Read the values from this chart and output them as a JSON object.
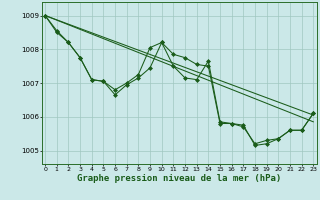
{
  "background_color": "#cbe8e8",
  "grid_color": "#a0c8c0",
  "line_color": "#1a5c1a",
  "xlabel": "Graphe pression niveau de la mer (hPa)",
  "xlabel_fontsize": 6.5,
  "ylabel_ticks": [
    1005,
    1006,
    1007,
    1008,
    1009
  ],
  "xtick_labels": [
    "0",
    "1",
    "2",
    "3",
    "4",
    "5",
    "6",
    "7",
    "8",
    "9",
    "10",
    "11",
    "12",
    "13",
    "14",
    "15",
    "16",
    "17",
    "18",
    "19",
    "20",
    "21",
    "22",
    "23"
  ],
  "xlim": [
    -0.3,
    23.3
  ],
  "ylim": [
    1004.6,
    1009.4
  ],
  "line1_x": [
    0,
    1,
    2,
    3,
    4,
    5,
    6,
    7,
    8,
    9,
    10,
    11,
    12,
    13,
    14,
    15,
    16,
    17,
    18,
    19,
    20,
    21,
    22,
    23
  ],
  "line1_y": [
    1009.0,
    1008.55,
    1008.2,
    1007.75,
    1007.1,
    1007.05,
    1006.65,
    1006.95,
    1007.15,
    1007.45,
    1008.2,
    1007.5,
    1007.15,
    1007.1,
    1007.65,
    1005.85,
    1005.8,
    1005.75,
    1005.15,
    1005.2,
    1005.35,
    1005.6,
    1005.6,
    1006.1
  ],
  "line2_x": [
    0,
    1,
    2,
    3,
    4,
    5,
    6,
    7,
    8,
    9,
    10,
    11,
    12,
    13,
    14,
    15,
    16,
    17,
    18,
    19,
    20,
    21,
    22,
    23
  ],
  "line2_y": [
    1009.0,
    1008.5,
    1008.2,
    1007.75,
    1007.1,
    1007.05,
    1006.8,
    1007.0,
    1007.25,
    1008.05,
    1008.2,
    1007.85,
    1007.75,
    1007.55,
    1007.5,
    1005.8,
    1005.8,
    1005.7,
    1005.2,
    1005.3,
    1005.35,
    1005.6,
    1005.6,
    1006.1
  ],
  "trend1_x": [
    0,
    23
  ],
  "trend1_y": [
    1009.0,
    1005.85
  ],
  "trend2_x": [
    0,
    23
  ],
  "trend2_y": [
    1009.0,
    1006.05
  ]
}
